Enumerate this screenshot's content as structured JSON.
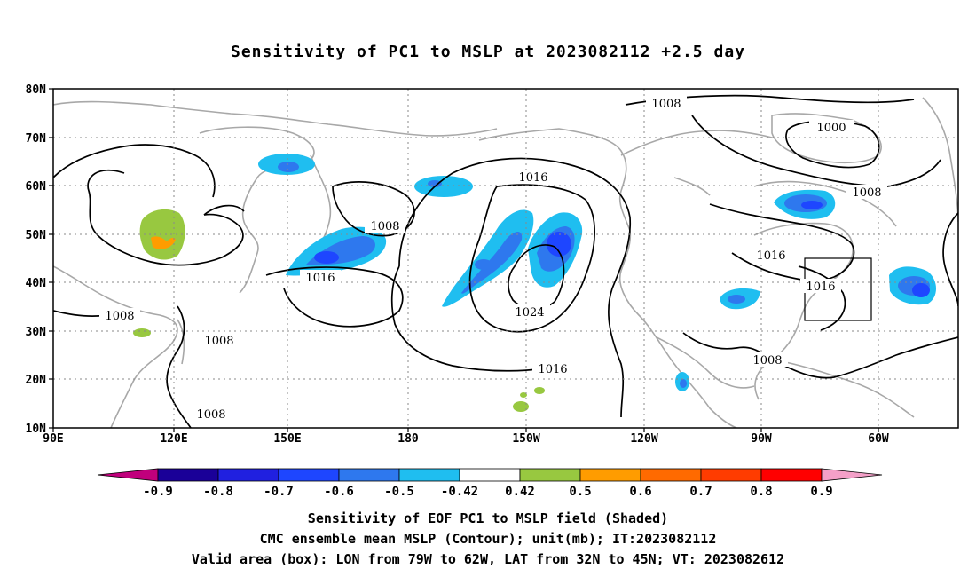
{
  "title": "Sensitivity of PC1 to MSLP at 2023082112 +2.5 day",
  "lat_labels": [
    "80N",
    "70N",
    "60N",
    "50N",
    "40N",
    "30N",
    "20N",
    "10N"
  ],
  "lon_labels": [
    "90E",
    "120E",
    "150E",
    "180",
    "150W",
    "120W",
    "90W",
    "60W"
  ],
  "isobar_labels": [
    "1008",
    "1000",
    "1008",
    "1016",
    "1008",
    "1016",
    "1016",
    "1016",
    "1024",
    "1008",
    "1008",
    "1016",
    "1008",
    "1008"
  ],
  "colorbar": {
    "labels": [
      "-0.9",
      "-0.8",
      "-0.7",
      "-0.6",
      "-0.5",
      "-0.42",
      "0.42",
      "0.5",
      "0.6",
      "0.7",
      "0.8",
      "0.9"
    ],
    "colors": [
      "#1a0098",
      "#2020e0",
      "#1e46ff",
      "#2e78ee",
      "#1fbef0",
      "#ffffff",
      "#98c840",
      "#ff9c00",
      "#ff6a00",
      "#ff3c00",
      "#ff0000"
    ],
    "left_arrow_color": "#c0007c",
    "right_arrow_color": "#f4a0c8"
  },
  "shading_colors": {
    "blue_light": "#1fbef0",
    "blue_mid": "#2e78ee",
    "blue_dark": "#1e46ff",
    "blue_darkest": "#2020e0",
    "green": "#98c840",
    "orange": "#ff9c00"
  },
  "valid_area": {
    "lon": [
      "79W",
      "62W"
    ],
    "lat": [
      "32N",
      "45N"
    ]
  },
  "captions": [
    "Sensitivity of EOF PC1 to MSLP field (Shaded)",
    "CMC ensemble mean MSLP (Contour); unit(mb); IT:2023082112",
    "Valid area (box): LON from 79W to 62W, LAT from 32N to 45N; VT: 2023082612"
  ]
}
